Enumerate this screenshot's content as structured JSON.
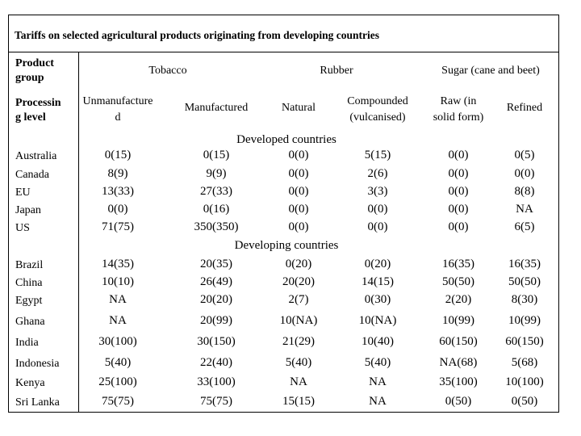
{
  "title": "Tariffs on selected agricultural products originating from developing countries",
  "header": {
    "product_group_label": [
      "Product",
      "group"
    ],
    "processing_level_label": [
      "Processin",
      "g level"
    ],
    "groups": [
      "Tobacco",
      "Rubber",
      "Sugar (cane and beet)"
    ],
    "subheads": [
      [
        "Unmanufacture",
        "d"
      ],
      [
        "Manufactured"
      ],
      [
        "Natural"
      ],
      [
        "Compounded",
        "(vulcanised)"
      ],
      [
        "Raw (in",
        "solid form)"
      ],
      [
        "Refined"
      ]
    ]
  },
  "sections": [
    {
      "label": "Developed countries",
      "rows": [
        {
          "country": "Australia",
          "values": [
            "0(15)",
            "0(15)",
            "0(0)",
            "5(15)",
            "0(0)",
            "0(5)"
          ]
        },
        {
          "country": "Canada",
          "values": [
            "8(9)",
            "9(9)",
            "0(0)",
            "2(6)",
            "0(0)",
            "0(0)"
          ]
        },
        {
          "country": "EU",
          "values": [
            "13(33)",
            "27(33)",
            "0(0)",
            "3(3)",
            "0(0)",
            "8(8)"
          ]
        },
        {
          "country": "Japan",
          "values": [
            "0(0)",
            "0(16)",
            "0(0)",
            "0(0)",
            "0(0)",
            "NA"
          ]
        },
        {
          "country": "US",
          "values": [
            "71(75)",
            "350(350)",
            "0(0)",
            "0(0)",
            "0(0)",
            "6(5)"
          ]
        }
      ]
    },
    {
      "label": "Developing countries",
      "rows": [
        {
          "country": "Brazil",
          "values": [
            "14(35)",
            "20(35)",
            "0(20)",
            "0(20)",
            "16(35)",
            "16(35)"
          ]
        },
        {
          "country": "China",
          "values": [
            "10(10)",
            "26(49)",
            "20(20)",
            "14(15)",
            "50(50)",
            "50(50)"
          ]
        },
        {
          "country": "Egypt",
          "values": [
            "NA",
            "20(20)",
            "2(7)",
            "0(30)",
            "2(20)",
            "8(30)"
          ]
        },
        {
          "country": "Ghana",
          "values": [
            "NA",
            "20(99)",
            "10(NA)",
            "10(NA)",
            "10(99)",
            "10(99)"
          ]
        },
        {
          "country": "India",
          "values": [
            "30(100)",
            "30(150)",
            "21(29)",
            "10(40)",
            "60(150)",
            "60(150)"
          ]
        },
        {
          "country": "Indonesia",
          "values": [
            "5(40)",
            "22(40)",
            "5(40)",
            "5(40)",
            "NA(68)",
            "5(68)"
          ]
        },
        {
          "country": "Kenya",
          "values": [
            "25(100)",
            "33(100)",
            "NA",
            "NA",
            "35(100)",
            "10(100)"
          ]
        },
        {
          "country": "Sri Lanka",
          "values": [
            "75(75)",
            "75(75)",
            "15(15)",
            "NA",
            "0(50)",
            "0(50)"
          ]
        }
      ]
    }
  ]
}
